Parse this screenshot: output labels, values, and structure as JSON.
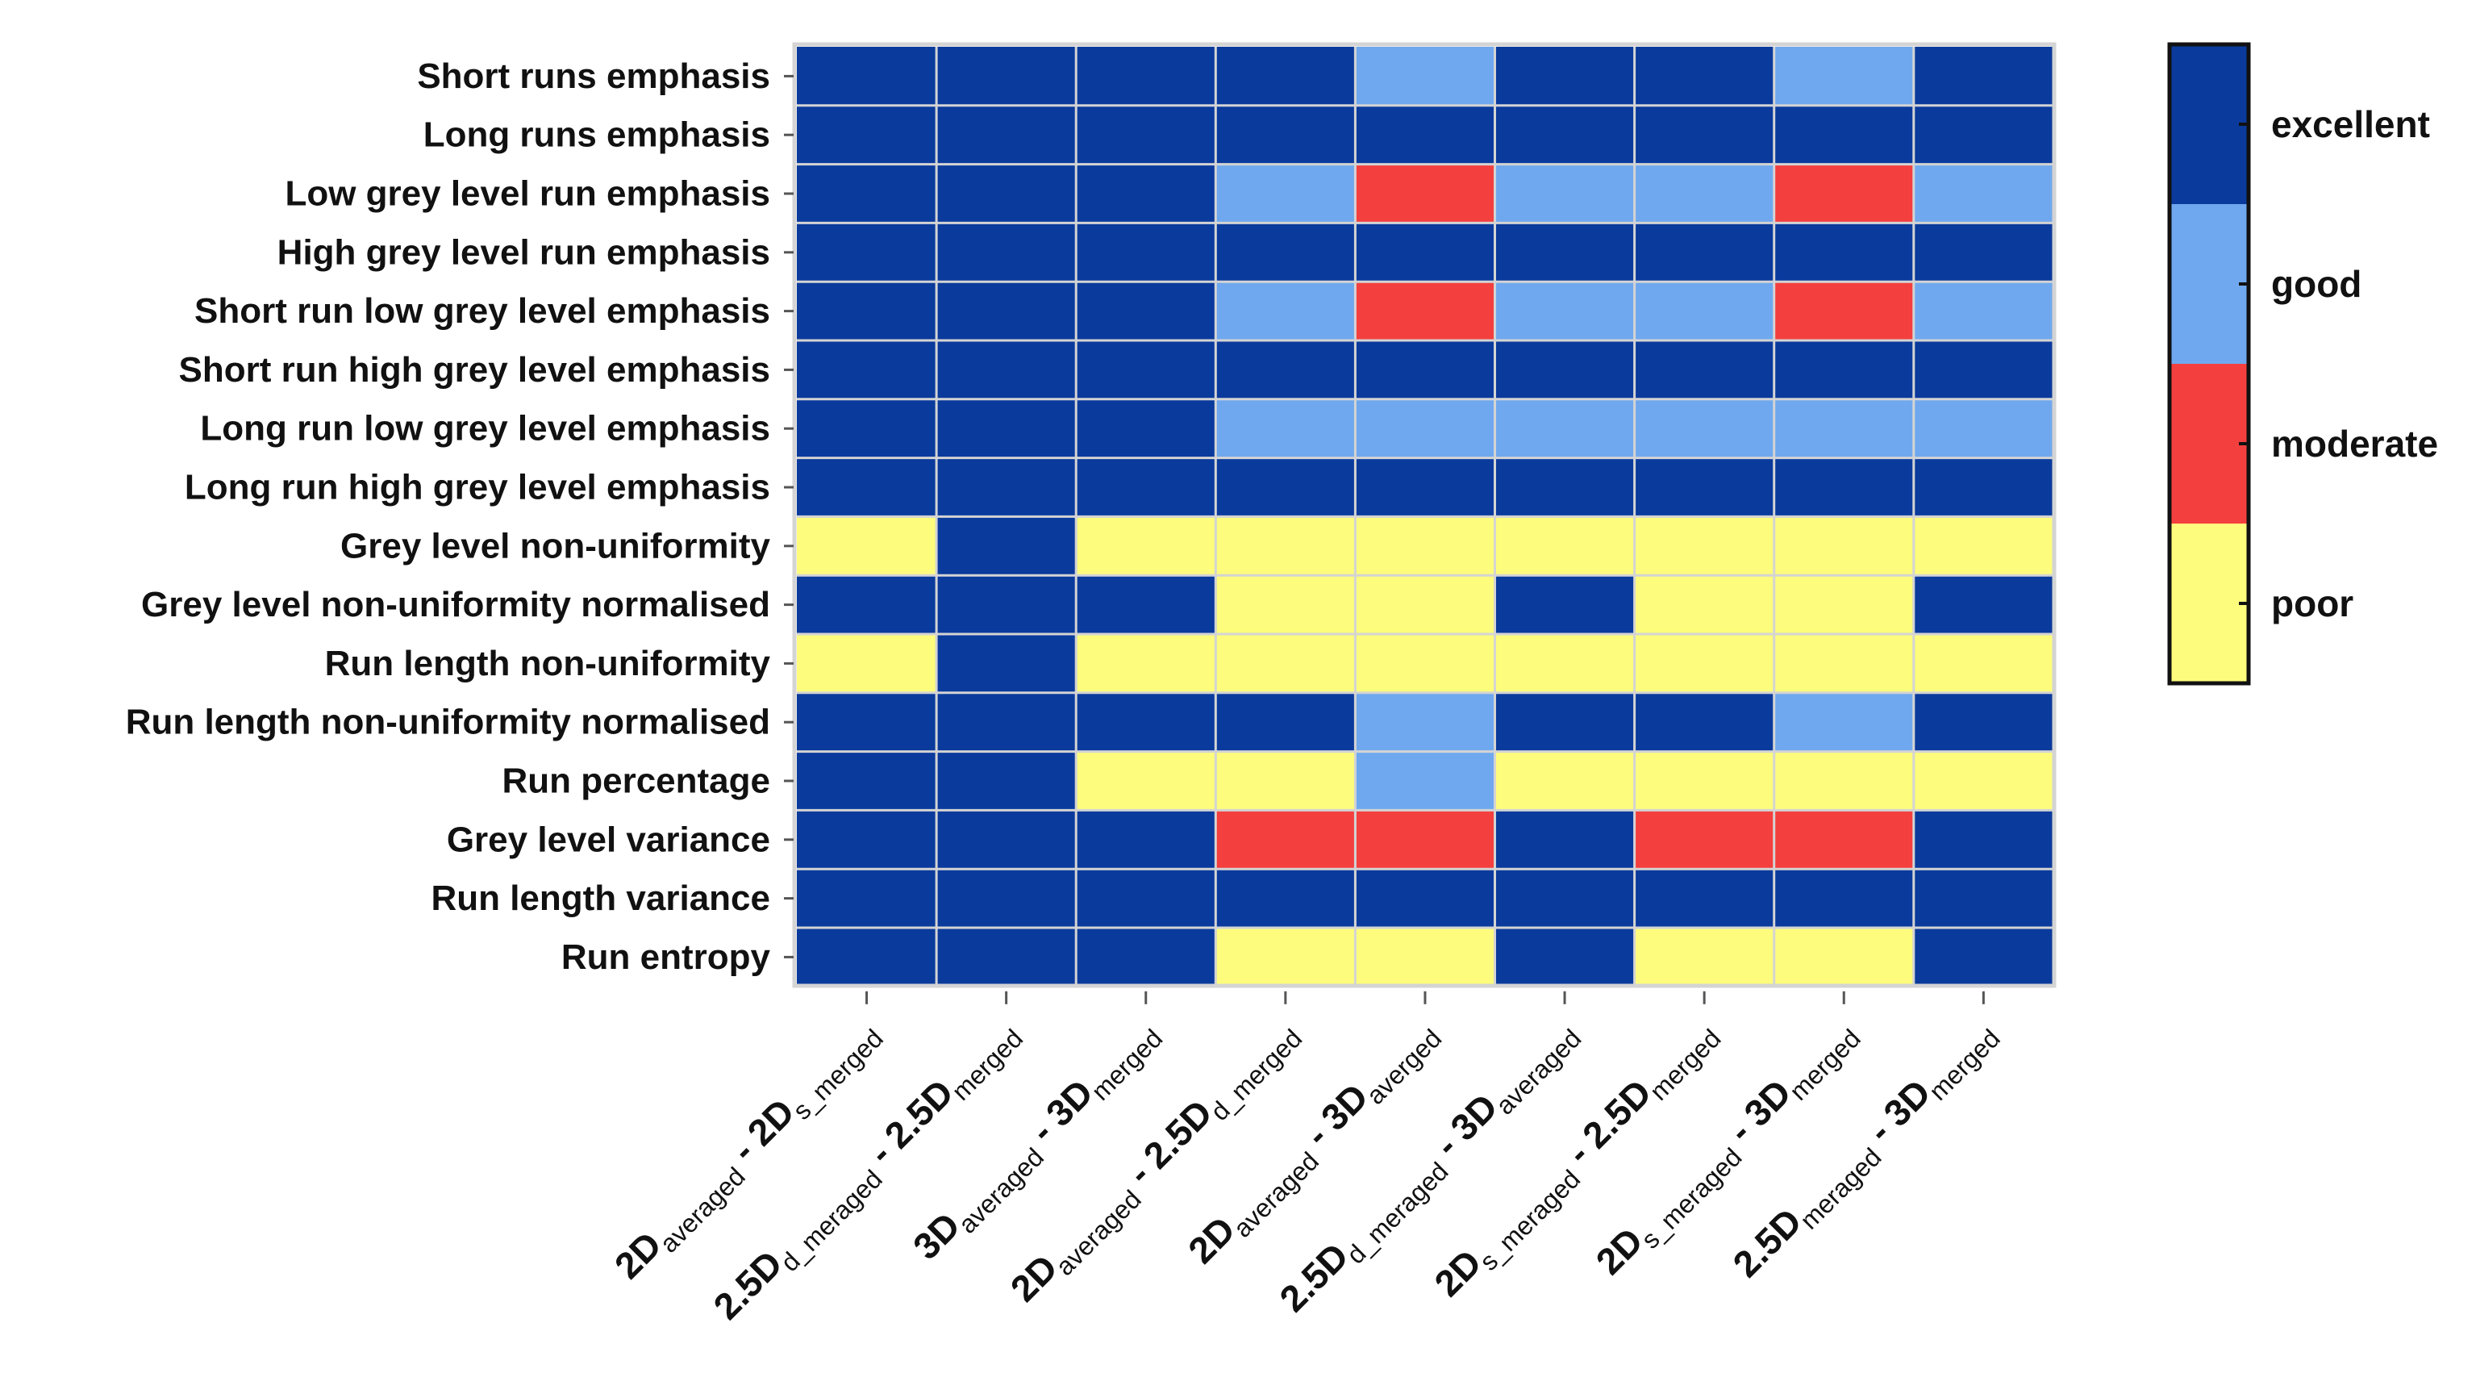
{
  "chart_data": {
    "type": "heatmap",
    "title": "",
    "rows": [
      "Short runs emphasis",
      "Long runs emphasis",
      "Low grey level run emphasis",
      "High grey level run emphasis",
      "Short run low grey level emphasis",
      "Short run high grey level emphasis",
      "Long run low grey level emphasis",
      "Long run high grey level emphasis",
      "Grey level non-uniformity",
      "Grey level non-uniformity normalised",
      "Run length non-uniformity",
      "Run length non-uniformity normalised",
      "Run percentage",
      "Grey level variance",
      "Run length variance",
      "Run entropy"
    ],
    "columns": [
      [
        {
          "t": "2D"
        },
        {
          "t": "averaged",
          "sub": true
        },
        {
          "t": " - 2D"
        },
        {
          "t": "s_merged",
          "sub": true
        }
      ],
      [
        {
          "t": "2.5D"
        },
        {
          "t": "d_meraged",
          "sub": true
        },
        {
          "t": " - 2.5D"
        },
        {
          "t": "merged",
          "sub": true
        }
      ],
      [
        {
          "t": "3D"
        },
        {
          "t": "averaged",
          "sub": true
        },
        {
          "t": " - 3D"
        },
        {
          "t": "merged",
          "sub": true
        }
      ],
      [
        {
          "t": "2D"
        },
        {
          "t": "averaged",
          "sub": true
        },
        {
          "t": " - 2.5D"
        },
        {
          "t": "d_merged",
          "sub": true
        }
      ],
      [
        {
          "t": "2D"
        },
        {
          "t": "averaged",
          "sub": true
        },
        {
          "t": " - 3D"
        },
        {
          "t": "averged",
          "sub": true
        }
      ],
      [
        {
          "t": "2.5D"
        },
        {
          "t": "d_meraged",
          "sub": true
        },
        {
          "t": " - 3D"
        },
        {
          "t": "averaged",
          "sub": true
        }
      ],
      [
        {
          "t": "2D"
        },
        {
          "t": "s_meraged",
          "sub": true
        },
        {
          "t": " - 2.5D"
        },
        {
          "t": "merged",
          "sub": true
        }
      ],
      [
        {
          "t": "2D"
        },
        {
          "t": "s_meraged",
          "sub": true
        },
        {
          "t": " - 3D"
        },
        {
          "t": "merged",
          "sub": true
        }
      ],
      [
        {
          "t": "2.5D"
        },
        {
          "t": "meraged",
          "sub": true
        },
        {
          "t": " - 3D"
        },
        {
          "t": "merged",
          "sub": true
        }
      ]
    ],
    "categories": [
      "excellent",
      "good",
      "moderate",
      "poor"
    ],
    "values": [
      [
        "excellent",
        "excellent",
        "excellent",
        "excellent",
        "good",
        "excellent",
        "excellent",
        "good",
        "excellent"
      ],
      [
        "excellent",
        "excellent",
        "excellent",
        "excellent",
        "excellent",
        "excellent",
        "excellent",
        "excellent",
        "excellent"
      ],
      [
        "excellent",
        "excellent",
        "excellent",
        "good",
        "moderate",
        "good",
        "good",
        "moderate",
        "good"
      ],
      [
        "excellent",
        "excellent",
        "excellent",
        "excellent",
        "excellent",
        "excellent",
        "excellent",
        "excellent",
        "excellent"
      ],
      [
        "excellent",
        "excellent",
        "excellent",
        "good",
        "moderate",
        "good",
        "good",
        "moderate",
        "good"
      ],
      [
        "excellent",
        "excellent",
        "excellent",
        "excellent",
        "excellent",
        "excellent",
        "excellent",
        "excellent",
        "excellent"
      ],
      [
        "excellent",
        "excellent",
        "excellent",
        "good",
        "good",
        "good",
        "good",
        "good",
        "good"
      ],
      [
        "excellent",
        "excellent",
        "excellent",
        "excellent",
        "excellent",
        "excellent",
        "excellent",
        "excellent",
        "excellent"
      ],
      [
        "poor",
        "excellent",
        "poor",
        "poor",
        "poor",
        "poor",
        "poor",
        "poor",
        "poor"
      ],
      [
        "excellent",
        "excellent",
        "excellent",
        "poor",
        "poor",
        "excellent",
        "poor",
        "poor",
        "excellent"
      ],
      [
        "poor",
        "excellent",
        "poor",
        "poor",
        "poor",
        "poor",
        "poor",
        "poor",
        "poor"
      ],
      [
        "excellent",
        "excellent",
        "excellent",
        "excellent",
        "good",
        "excellent",
        "excellent",
        "good",
        "excellent"
      ],
      [
        "excellent",
        "excellent",
        "poor",
        "poor",
        "good",
        "poor",
        "poor",
        "poor",
        "poor"
      ],
      [
        "excellent",
        "excellent",
        "excellent",
        "moderate",
        "moderate",
        "excellent",
        "moderate",
        "moderate",
        "excellent"
      ],
      [
        "excellent",
        "excellent",
        "excellent",
        "excellent",
        "excellent",
        "excellent",
        "excellent",
        "excellent",
        "excellent"
      ],
      [
        "excellent",
        "excellent",
        "excellent",
        "poor",
        "poor",
        "excellent",
        "poor",
        "poor",
        "excellent"
      ]
    ],
    "legend": {
      "placement": "right",
      "items": [
        {
          "label": "excellent",
          "color": "#0A3A9C"
        },
        {
          "label": "good",
          "color": "#6FA8EE"
        },
        {
          "label": "moderate",
          "color": "#F43F3F"
        },
        {
          "label": "poor",
          "color": "#FDFC7C"
        }
      ]
    },
    "colors": {
      "excellent": "#0A3A9C",
      "good": "#6FA8EE",
      "moderate": "#F43F3F",
      "poor": "#FDFC7C"
    },
    "xlabel": "",
    "ylabel": ""
  }
}
